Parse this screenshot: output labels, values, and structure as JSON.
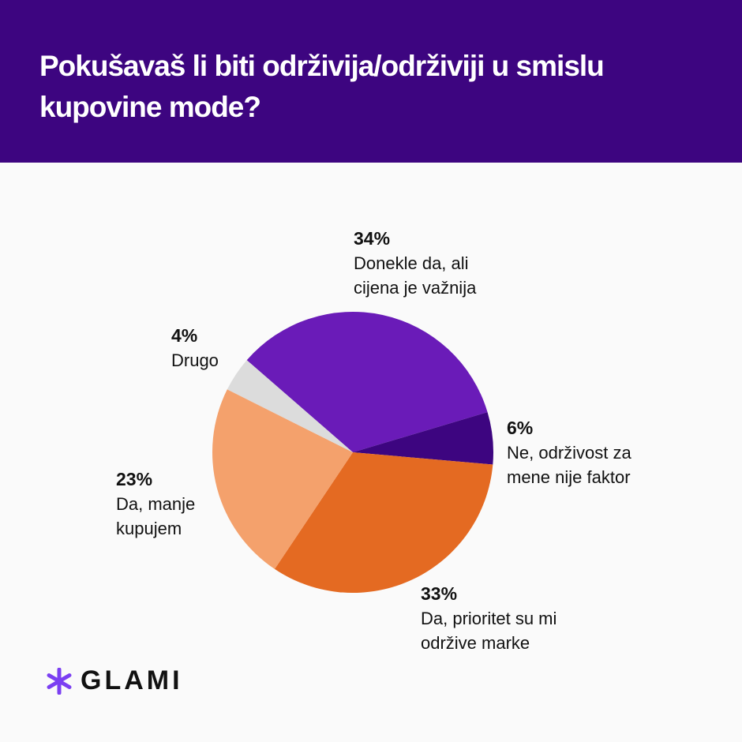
{
  "title": "Pokušavaš li biti održivija/održiviji u smislu kupovine mode?",
  "brand": {
    "name": "GLAMI",
    "icon": "asterisk-icon",
    "color": "#7b3ff2"
  },
  "chart_data": {
    "type": "pie",
    "title": "Pokušavaš li biti održivija/održiviji u smislu kupovine mode?",
    "start_angle_deg": 311,
    "direction": "clockwise",
    "slices": [
      {
        "label": "Donekle da, ali cijena je važnija",
        "value": 34,
        "pct_label": "34%",
        "color": "#6a1bb8"
      },
      {
        "label": "Ne, održivost za mene nije faktor",
        "value": 6,
        "pct_label": "6%",
        "color": "#3d0580"
      },
      {
        "label": "Da, prioritet su mi održive marke",
        "value": 33,
        "pct_label": "33%",
        "color": "#e46a22"
      },
      {
        "label": "Da, manje kupujem",
        "value": 23,
        "pct_label": "23%",
        "color": "#f4a16c"
      },
      {
        "label": "Drugo",
        "value": 4,
        "pct_label": "4%",
        "color": "#dcdcdc"
      }
    ]
  }
}
